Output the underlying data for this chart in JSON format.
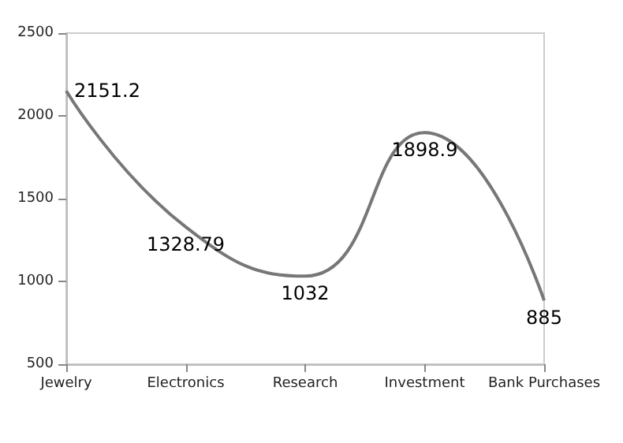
{
  "chart_data": {
    "type": "line",
    "categories": [
      "Jewelry",
      "Electronics",
      "Research",
      "Investment",
      "Bank Purchases"
    ],
    "series": [
      {
        "color": "#777777",
        "values": [
          2151.2,
          1328.79,
          1032,
          1898.9,
          885
        ]
      }
    ],
    "ylim": [
      500,
      2500
    ],
    "yticks": [
      500,
      1000,
      1500,
      2000,
      2500
    ],
    "grid": false,
    "marker": "none",
    "line_style": "solid",
    "data_labels": true
  }
}
